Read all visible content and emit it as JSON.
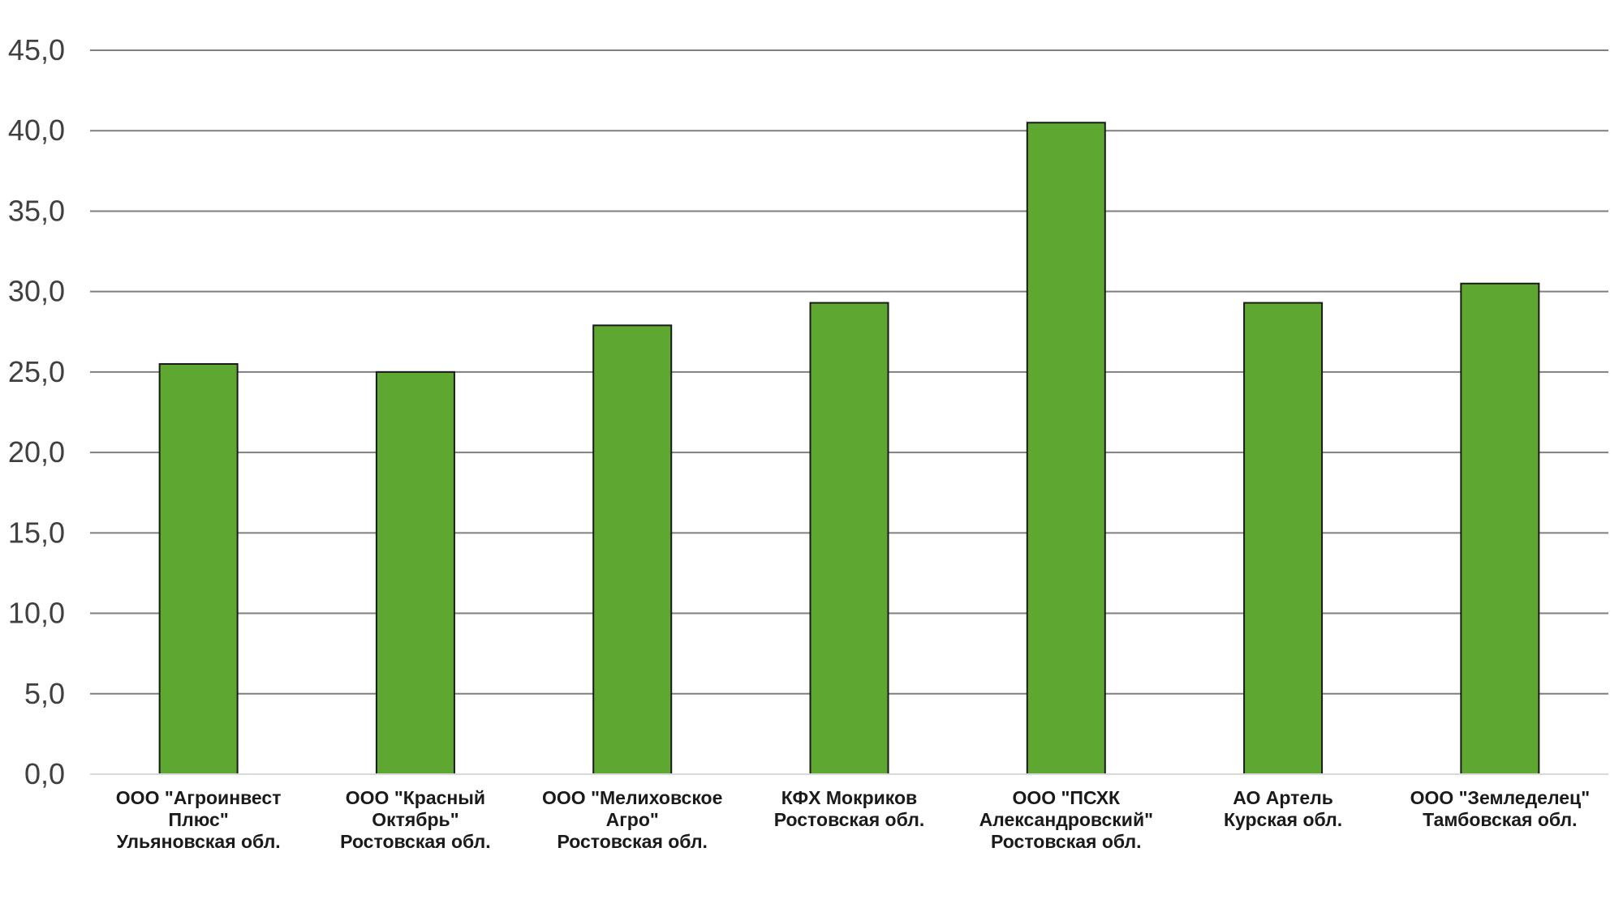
{
  "chart_data": {
    "type": "bar",
    "categories": [
      [
        "ООО \"Агроинвест",
        "Плюс\"",
        "Ульяновская обл."
      ],
      [
        "ООО \"Красный",
        "Октябрь\"",
        "Ростовская обл."
      ],
      [
        "ООО \"Мелиховское",
        "Агро\"",
        "Ростовская обл."
      ],
      [
        "КФХ Мокриков",
        "Ростовская обл."
      ],
      [
        "ООО \"ПСХК",
        "Александровский\"",
        "Ростовская обл."
      ],
      [
        "АО Артель",
        "Курская обл."
      ],
      [
        "ООО \"Земледелец\"",
        "Тамбовская обл."
      ]
    ],
    "values": [
      25.5,
      25.0,
      27.9,
      29.3,
      40.5,
      29.3,
      30.5
    ],
    "yticks": [
      "0,0",
      "5,0",
      "10,0",
      "15,0",
      "20,0",
      "25,0",
      "30,0",
      "35,0",
      "40,0",
      "45,0"
    ],
    "ylim": [
      0,
      45
    ],
    "grid": true,
    "colors": {
      "bar": "#5ea832",
      "grid": "#7f7f7f"
    }
  }
}
